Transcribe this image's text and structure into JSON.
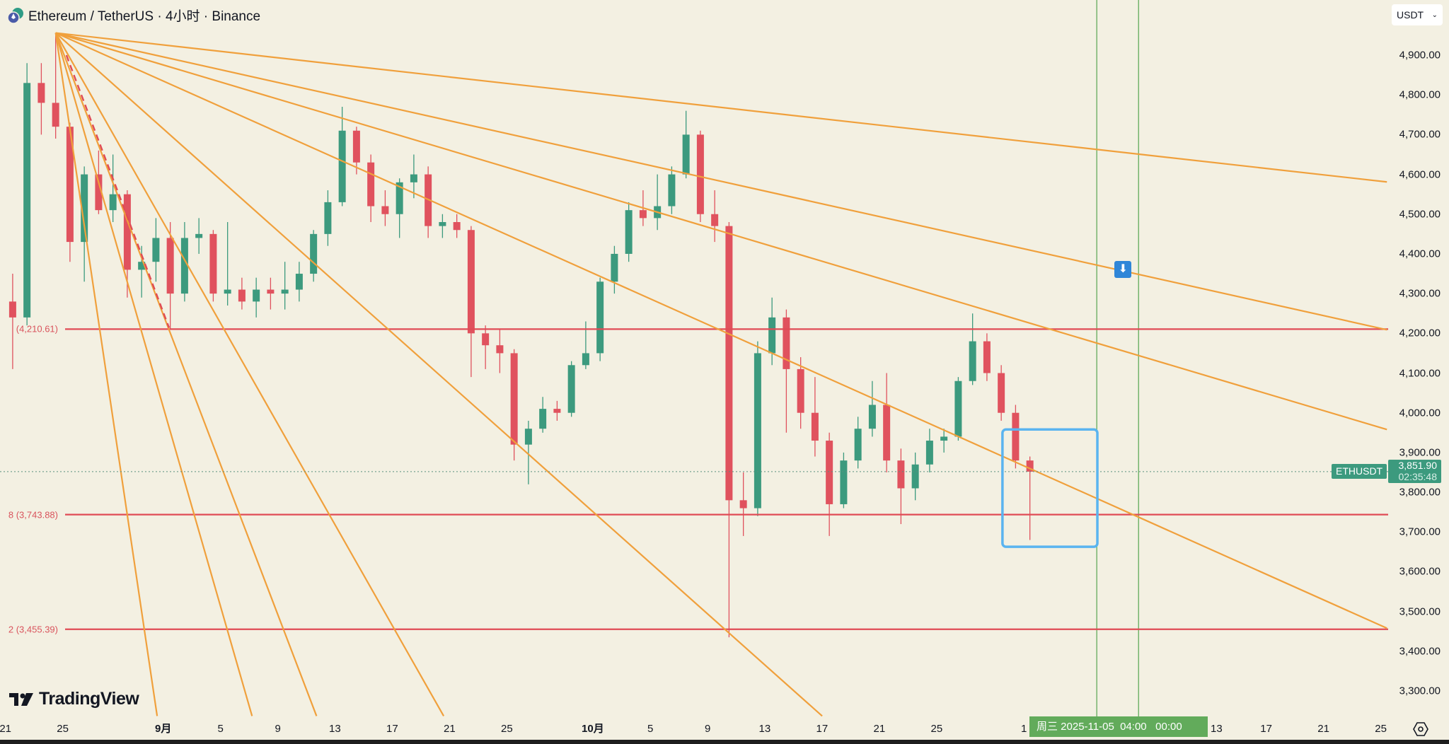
{
  "header": {
    "title": "Ethereum / TetherUS · 4小时 · Binance",
    "currency_select": "USDT"
  },
  "symbol_tag": "ETHUSDT",
  "last_price": "3,851.90",
  "countdown": "02:35:48",
  "crosshair_date": "周三 2025-11-05  04:00   00:00",
  "logo_text": "TradingView",
  "colors": {
    "background": "#f3f0e2",
    "up": "#3c9a7e",
    "down": "#e0525e",
    "fan_lines": "#f0a03c",
    "horizontal_lines": "#e04b55",
    "highlight_box": "#5ab4f0",
    "vertical_lines": "#62ab5b"
  },
  "chart_data": {
    "type": "candlestick",
    "interval": "4h (rendered here as daily OHLC approximation)",
    "ylim": [
      3260,
      5000
    ],
    "y_ticks": [
      "4,900.00",
      "4,800.00",
      "4,700.00",
      "4,600.00",
      "4,500.00",
      "4,400.00",
      "4,300.00",
      "4,200.00",
      "4,100.00",
      "4,000.00",
      "3,900.00",
      "3,800.00",
      "3,700.00",
      "3,600.00",
      "3,500.00",
      "3,400.00",
      "3,300.00"
    ],
    "x_ticks": [
      {
        "date": "2025-08-21",
        "label": "21"
      },
      {
        "date": "2025-08-25",
        "label": "25"
      },
      {
        "date": "2025-09-01",
        "label": "9月",
        "bold": true
      },
      {
        "date": "2025-09-05",
        "label": "5"
      },
      {
        "date": "2025-09-09",
        "label": "9"
      },
      {
        "date": "2025-09-13",
        "label": "13"
      },
      {
        "date": "2025-09-17",
        "label": "17"
      },
      {
        "date": "2025-09-21",
        "label": "21"
      },
      {
        "date": "2025-09-25",
        "label": "25"
      },
      {
        "date": "2025-10-01",
        "label": "10月",
        "bold": true
      },
      {
        "date": "2025-10-05",
        "label": "5"
      },
      {
        "date": "2025-10-09",
        "label": "9"
      },
      {
        "date": "2025-10-13",
        "label": "13"
      },
      {
        "date": "2025-10-17",
        "label": "17"
      },
      {
        "date": "2025-10-21",
        "label": "21"
      },
      {
        "date": "2025-10-25",
        "label": "25"
      },
      {
        "date": "2025-11-01",
        "label": "1"
      },
      {
        "date": "2025-11-13",
        "label": "13"
      },
      {
        "date": "2025-11-17",
        "label": "17"
      },
      {
        "date": "2025-11-21",
        "label": "21"
      },
      {
        "date": "2025-11-25",
        "label": "25"
      }
    ],
    "candles": [
      [
        "2025-08-21",
        4280,
        4350,
        4110,
        4240
      ],
      [
        "2025-08-22",
        4240,
        4880,
        4220,
        4830
      ],
      [
        "2025-08-23",
        4830,
        4880,
        4700,
        4780
      ],
      [
        "2025-08-24",
        4780,
        4956,
        4690,
        4720
      ],
      [
        "2025-08-25",
        4720,
        4730,
        4380,
        4430
      ],
      [
        "2025-08-26",
        4430,
        4620,
        4330,
        4600
      ],
      [
        "2025-08-27",
        4600,
        4660,
        4500,
        4510
      ],
      [
        "2025-08-28",
        4510,
        4650,
        4480,
        4550
      ],
      [
        "2025-08-29",
        4550,
        4560,
        4290,
        4360
      ],
      [
        "2025-08-30",
        4360,
        4420,
        4290,
        4380
      ],
      [
        "2025-08-31",
        4380,
        4490,
        4330,
        4440
      ],
      [
        "2025-09-01",
        4440,
        4480,
        4210,
        4300
      ],
      [
        "2025-09-02",
        4300,
        4480,
        4280,
        4440
      ],
      [
        "2025-09-03",
        4440,
        4490,
        4400,
        4450
      ],
      [
        "2025-09-04",
        4450,
        4460,
        4280,
        4300
      ],
      [
        "2025-09-05",
        4300,
        4480,
        4270,
        4310
      ],
      [
        "2025-09-06",
        4310,
        4340,
        4260,
        4280
      ],
      [
        "2025-09-07",
        4280,
        4340,
        4240,
        4310
      ],
      [
        "2025-09-08",
        4310,
        4340,
        4260,
        4300
      ],
      [
        "2025-09-09",
        4300,
        4380,
        4260,
        4310
      ],
      [
        "2025-09-10",
        4310,
        4380,
        4280,
        4350
      ],
      [
        "2025-09-11",
        4350,
        4460,
        4330,
        4450
      ],
      [
        "2025-09-12",
        4450,
        4560,
        4420,
        4530
      ],
      [
        "2025-09-13",
        4530,
        4770,
        4520,
        4710
      ],
      [
        "2025-09-14",
        4710,
        4720,
        4600,
        4630
      ],
      [
        "2025-09-15",
        4630,
        4650,
        4480,
        4520
      ],
      [
        "2025-09-16",
        4520,
        4560,
        4470,
        4500
      ],
      [
        "2025-09-17",
        4500,
        4590,
        4440,
        4580
      ],
      [
        "2025-09-18",
        4580,
        4650,
        4540,
        4600
      ],
      [
        "2025-09-19",
        4600,
        4620,
        4440,
        4470
      ],
      [
        "2025-09-20",
        4470,
        4500,
        4440,
        4480
      ],
      [
        "2025-09-21",
        4480,
        4500,
        4440,
        4460
      ],
      [
        "2025-09-22",
        4460,
        4470,
        4090,
        4200
      ],
      [
        "2025-09-23",
        4200,
        4220,
        4110,
        4170
      ],
      [
        "2025-09-24",
        4170,
        4210,
        4100,
        4150
      ],
      [
        "2025-09-25",
        4150,
        4160,
        3880,
        3920
      ],
      [
        "2025-09-26",
        3920,
        3980,
        3820,
        3960
      ],
      [
        "2025-09-27",
        3960,
        4040,
        3950,
        4010
      ],
      [
        "2025-09-28",
        4010,
        4030,
        3980,
        4000
      ],
      [
        "2025-09-29",
        4000,
        4130,
        3990,
        4120
      ],
      [
        "2025-09-30",
        4120,
        4230,
        4110,
        4150
      ],
      [
        "2025-10-01",
        4150,
        4340,
        4130,
        4330
      ],
      [
        "2025-10-02",
        4330,
        4420,
        4300,
        4400
      ],
      [
        "2025-10-03",
        4400,
        4530,
        4380,
        4510
      ],
      [
        "2025-10-04",
        4510,
        4560,
        4470,
        4490
      ],
      [
        "2025-10-05",
        4490,
        4600,
        4460,
        4520
      ],
      [
        "2025-10-06",
        4520,
        4620,
        4500,
        4600
      ],
      [
        "2025-10-07",
        4600,
        4760,
        4590,
        4700
      ],
      [
        "2025-10-08",
        4700,
        4710,
        4480,
        4500
      ],
      [
        "2025-10-09",
        4500,
        4560,
        4430,
        4470
      ],
      [
        "2025-10-10",
        4470,
        4480,
        3435,
        3780
      ],
      [
        "2025-10-11",
        3780,
        3850,
        3690,
        3760
      ],
      [
        "2025-10-12",
        3760,
        4180,
        3740,
        4150
      ],
      [
        "2025-10-13",
        4150,
        4290,
        4120,
        4240
      ],
      [
        "2025-10-14",
        4240,
        4260,
        3950,
        4110
      ],
      [
        "2025-10-15",
        4110,
        4140,
        3960,
        4000
      ],
      [
        "2025-10-16",
        4000,
        4090,
        3890,
        3930
      ],
      [
        "2025-10-17",
        3930,
        3950,
        3690,
        3770
      ],
      [
        "2025-10-18",
        3770,
        3900,
        3760,
        3880
      ],
      [
        "2025-10-19",
        3880,
        3990,
        3860,
        3960
      ],
      [
        "2025-10-20",
        3960,
        4080,
        3940,
        4020
      ],
      [
        "2025-10-21",
        4020,
        4100,
        3850,
        3880
      ],
      [
        "2025-10-22",
        3880,
        3910,
        3720,
        3810
      ],
      [
        "2025-10-23",
        3810,
        3900,
        3780,
        3870
      ],
      [
        "2025-10-24",
        3870,
        3960,
        3850,
        3930
      ],
      [
        "2025-10-25",
        3930,
        3960,
        3900,
        3940
      ],
      [
        "2025-10-26",
        3940,
        4090,
        3930,
        4080
      ],
      [
        "2025-10-27",
        4080,
        4250,
        4070,
        4180
      ],
      [
        "2025-10-28",
        4180,
        4200,
        4080,
        4100
      ],
      [
        "2025-10-29",
        4100,
        4120,
        3980,
        4000
      ],
      [
        "2025-10-30",
        4000,
        4020,
        3860,
        3880
      ],
      [
        "2025-10-31",
        3880,
        3890,
        3680,
        3851.9
      ]
    ],
    "current_price": 3851.9,
    "horizontal_levels": [
      {
        "price": 4210.61,
        "label": "(4,210.61)"
      },
      {
        "price": 3743.88,
        "label": "8 (3,743.88)"
      },
      {
        "price": 3455.39,
        "label": "2 (3,455.39)"
      }
    ],
    "fan": {
      "anchor": {
        "date": "2025-08-24 12:00",
        "price": 4956
      },
      "ends": [
        {
          "date": "2025-11-25 10:00",
          "price": 4581
        },
        {
          "date": "2025-11-25 10:00",
          "price": 4209
        },
        {
          "date": "2025-11-25 10:00",
          "price": 3958
        },
        {
          "date": "2025-11-25 10:00",
          "price": 3458
        },
        {
          "date": "2025-10-17 00:00",
          "price": 3237
        },
        {
          "date": "2025-09-20 14:00",
          "price": 3237
        },
        {
          "date": "2025-09-11 17:00",
          "price": 3237
        },
        {
          "date": "2025-09-07 05:00",
          "price": 3237
        },
        {
          "date": "2025-08-31 14:00",
          "price": 3237
        }
      ]
    },
    "dashed_line": {
      "from": {
        "date": "2025-08-25 06:00",
        "price": 4900
      },
      "to": {
        "date": "2025-09-01 10:00",
        "price": 4214
      }
    },
    "highlight_box": {
      "from": {
        "date": "2025-10-29 14:00",
        "price": 3958
      },
      "to": {
        "date": "2025-11-05 05:00",
        "price": 3663
      }
    },
    "vertical_lines": [
      "2025-11-05 04:00",
      "2025-11-08 02:00"
    ],
    "marker": {
      "date": "2025-11-07 00:00",
      "price": 4360,
      "icon": "arrow-down-icon"
    }
  }
}
